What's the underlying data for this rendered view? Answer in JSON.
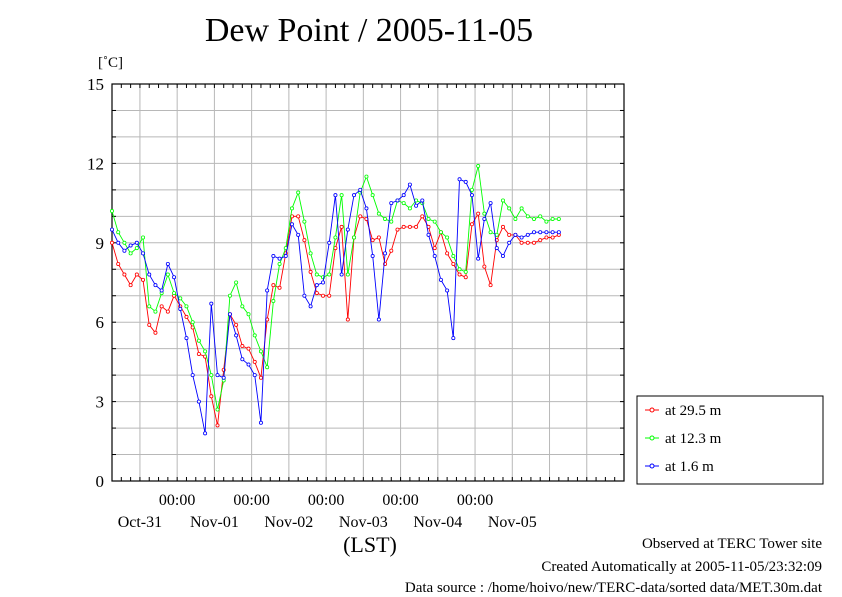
{
  "page": {
    "title": "Dew Point / 2005-11-05",
    "unit": "[˚C]",
    "xlabel": "(LST)",
    "footer_observed": "Observed at TERC Tower site",
    "footer_created": "Created Automatically at 2005-11-05/23:32:09",
    "footer_source": "Data source : /home/hoivo/new/TERC-data/sorted  data/MET.30m.dat"
  },
  "chart_data": {
    "type": "line",
    "title": "Dew Point / 2005-11-05",
    "ylabel": "[˚C]",
    "xlabel": "(LST)",
    "ylim": [
      0,
      15
    ],
    "yticks": [
      0,
      3,
      6,
      9,
      12,
      15
    ],
    "xlim_hours": [
      -21,
      144
    ],
    "xticks_hours": [
      0,
      24,
      48,
      72,
      96
    ],
    "xtick_time_labels": [
      "00:00",
      "00:00",
      "00:00",
      "00:00",
      "00:00"
    ],
    "date_labels": [
      "Oct-31",
      "Nov-01",
      "Nov-02",
      "Nov-03",
      "Nov-04",
      "Nov-05"
    ],
    "date_label_hours": [
      -12,
      12,
      36,
      60,
      84,
      108
    ],
    "grid": true,
    "legend_position": "right",
    "series": [
      {
        "name": "at 29.5 m",
        "color": "#ff0000",
        "x": [
          -21,
          -19,
          -17,
          -15,
          -13,
          -11,
          -9,
          -7,
          -5,
          -3,
          -1,
          1,
          3,
          5,
          7,
          9,
          11,
          13,
          15,
          17,
          19,
          21,
          23,
          25,
          27,
          29,
          31,
          33,
          35,
          37,
          39,
          41,
          43,
          45,
          47,
          49,
          51,
          53,
          55,
          57,
          59,
          61,
          63,
          65,
          67,
          69,
          71,
          73,
          75,
          77,
          79,
          81,
          83,
          85,
          87,
          89,
          91,
          93,
          95,
          97,
          99,
          101,
          103,
          105,
          107,
          109,
          111,
          113,
          115,
          117,
          119,
          121,
          123
        ],
        "y": [
          9.0,
          8.2,
          7.8,
          7.4,
          7.8,
          7.6,
          5.9,
          5.6,
          6.6,
          6.4,
          7.0,
          6.6,
          6.2,
          5.8,
          4.8,
          4.7,
          3.2,
          2.1,
          4.2,
          6.3,
          5.9,
          5.1,
          5.0,
          4.5,
          3.9,
          6.1,
          7.4,
          7.3,
          8.6,
          10.0,
          10.0,
          9.1,
          7.9,
          7.1,
          7.0,
          7.0,
          8.8,
          9.6,
          6.1,
          9.2,
          10.0,
          9.9,
          9.1,
          9.2,
          8.2,
          8.7,
          9.5,
          9.6,
          9.6,
          9.6,
          10.0,
          9.6,
          8.8,
          9.4,
          8.6,
          8.2,
          7.8,
          7.7,
          9.7,
          10.1,
          8.1,
          7.4,
          9.1,
          9.6,
          9.3,
          9.3,
          9.0,
          9.0,
          9.0,
          9.1,
          9.2,
          9.2,
          9.3
        ]
      },
      {
        "name": "at 12.3 m",
        "color": "#00ff00",
        "x": [
          -21,
          -19,
          -17,
          -15,
          -13,
          -11,
          -9,
          -7,
          -5,
          -3,
          -1,
          1,
          3,
          5,
          7,
          9,
          11,
          13,
          15,
          17,
          19,
          21,
          23,
          25,
          27,
          29,
          31,
          33,
          35,
          37,
          39,
          41,
          43,
          45,
          47,
          49,
          51,
          53,
          55,
          57,
          59,
          61,
          63,
          65,
          67,
          69,
          71,
          73,
          75,
          77,
          79,
          81,
          83,
          85,
          87,
          89,
          91,
          93,
          95,
          97,
          99,
          101,
          103,
          105,
          107,
          109,
          111,
          113,
          115,
          117,
          119,
          121,
          123
        ],
        "y": [
          10.2,
          9.4,
          9.0,
          8.6,
          8.8,
          9.2,
          6.6,
          6.4,
          7.1,
          7.8,
          7.1,
          6.9,
          6.6,
          6.0,
          5.3,
          4.9,
          4.0,
          2.7,
          3.8,
          7.0,
          7.5,
          6.6,
          6.3,
          5.5,
          4.9,
          4.3,
          6.8,
          8.2,
          8.8,
          10.3,
          10.9,
          9.8,
          8.6,
          7.8,
          7.7,
          7.8,
          9.2,
          10.8,
          7.8,
          9.2,
          10.9,
          11.5,
          10.8,
          10.1,
          9.9,
          9.8,
          10.6,
          10.5,
          10.3,
          10.6,
          10.5,
          9.9,
          9.8,
          9.4,
          9.2,
          8.5,
          8.0,
          7.9,
          11.0,
          11.9,
          10.1,
          9.4,
          9.3,
          10.6,
          10.3,
          9.9,
          10.3,
          10.0,
          9.9,
          10.0,
          9.8,
          9.9,
          9.9
        ]
      },
      {
        "name": "at 1.6 m",
        "color": "#0000ff",
        "x": [
          -21,
          -19,
          -17,
          -15,
          -13,
          -11,
          -9,
          -7,
          -5,
          -3,
          -1,
          1,
          3,
          5,
          7,
          9,
          11,
          13,
          15,
          17,
          19,
          21,
          23,
          25,
          27,
          29,
          31,
          33,
          35,
          37,
          39,
          41,
          43,
          45,
          47,
          49,
          51,
          53,
          55,
          57,
          59,
          61,
          63,
          65,
          67,
          69,
          71,
          73,
          75,
          77,
          79,
          81,
          83,
          85,
          87,
          89,
          91,
          93,
          95,
          97,
          99,
          101,
          103,
          105,
          107,
          109,
          111,
          113,
          115,
          117,
          119,
          121,
          123
        ],
        "y": [
          9.5,
          9.0,
          8.7,
          8.9,
          9.0,
          8.6,
          7.8,
          7.4,
          7.2,
          8.2,
          7.7,
          6.5,
          5.4,
          4.0,
          3.0,
          1.8,
          6.7,
          4.0,
          3.9,
          6.3,
          5.5,
          4.6,
          4.4,
          4.0,
          2.2,
          7.2,
          8.5,
          8.4,
          8.5,
          9.7,
          9.3,
          7.0,
          6.6,
          7.4,
          7.5,
          9.0,
          10.8,
          7.8,
          9.5,
          10.8,
          11.0,
          10.3,
          8.5,
          6.1,
          8.6,
          10.5,
          10.6,
          10.8,
          11.2,
          10.4,
          10.6,
          9.3,
          8.5,
          7.6,
          7.2,
          5.4,
          11.4,
          11.3,
          10.8,
          8.4,
          9.9,
          10.5,
          8.8,
          8.5,
          9.0,
          9.3,
          9.2,
          9.3,
          9.4,
          9.4,
          9.4,
          9.4,
          9.4
        ]
      }
    ]
  }
}
